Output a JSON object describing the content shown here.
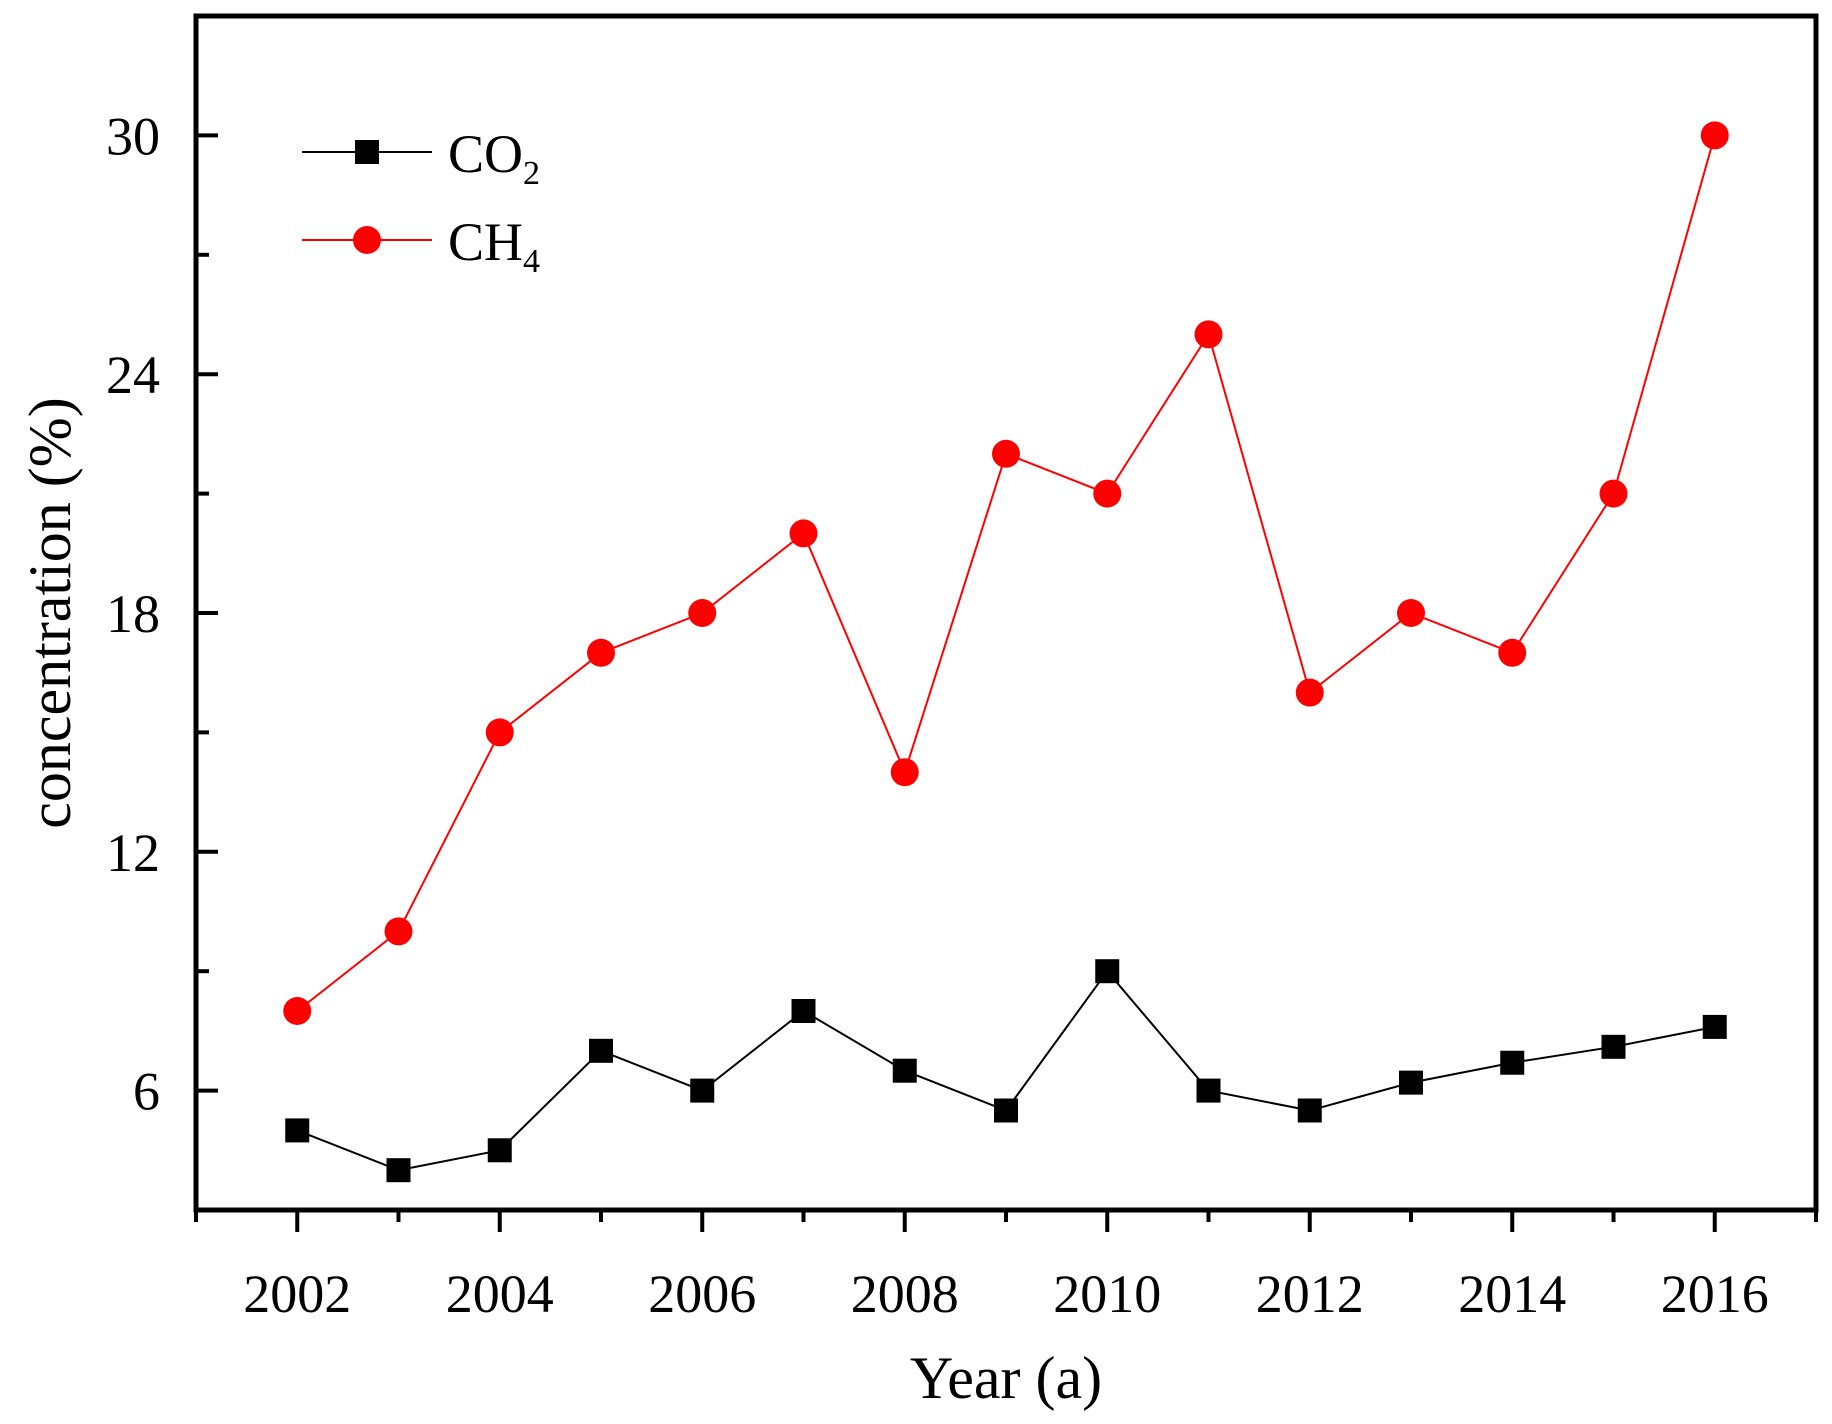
{
  "chart_data": {
    "type": "line",
    "title": "",
    "xlabel": "Year (a)",
    "ylabel": "concentration (%)",
    "xlim": [
      2001,
      2017
    ],
    "ylim": [
      3,
      33
    ],
    "x_ticks": [
      2002,
      2004,
      2006,
      2008,
      2010,
      2012,
      2014,
      2016
    ],
    "x_tick_labels": [
      "2002",
      "2004",
      "2006",
      "2008",
      "2010",
      "2012",
      "2014",
      "2016"
    ],
    "y_ticks": [
      6,
      12,
      18,
      24,
      30
    ],
    "y_tick_labels": [
      "6",
      "12",
      "18",
      "24",
      "30"
    ],
    "grid": false,
    "legend_position": "top-left",
    "x": [
      2002,
      2003,
      2004,
      2005,
      2006,
      2007,
      2008,
      2009,
      2010,
      2011,
      2012,
      2013,
      2014,
      2015,
      2016
    ],
    "series": [
      {
        "name": "CO2",
        "legend_main": "CO",
        "legend_sub": "2",
        "color": "#000000",
        "marker": "square",
        "values": [
          5.0,
          4.0,
          4.5,
          7.0,
          6.0,
          8.0,
          6.5,
          5.5,
          9.0,
          6.0,
          5.5,
          6.2,
          6.7,
          7.1,
          7.6
        ]
      },
      {
        "name": "CH4",
        "legend_main": "CH",
        "legend_sub": "4",
        "color": "#ff0000",
        "marker": "circle",
        "values": [
          8.0,
          10.0,
          15.0,
          17.0,
          18.0,
          20.0,
          14.0,
          22.0,
          21.0,
          25.0,
          16.0,
          18.0,
          17.0,
          21.0,
          30.0
        ]
      }
    ]
  }
}
